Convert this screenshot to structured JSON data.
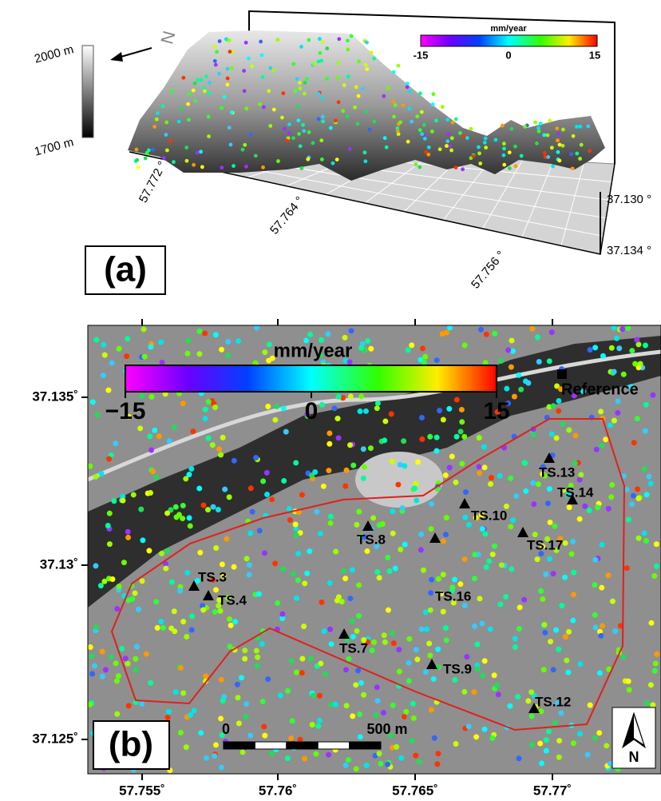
{
  "panel_a": {
    "label": "(a)",
    "elevation_scale": {
      "top": "2000 m",
      "bottom": "1700 m"
    },
    "north": "N",
    "colorbar": {
      "title": "mm/year",
      "ticks": [
        "-15",
        "0",
        "15"
      ]
    },
    "longitude_labels": [
      "57.772 °",
      "57.764 °",
      "57.756 °"
    ],
    "latitude_labels": [
      "37.130 °",
      "37.134 °"
    ]
  },
  "panel_b": {
    "label": "(b)",
    "reference": "Reference",
    "north": "N",
    "colorbar": {
      "title": "mm/year",
      "ticks": [
        "−15",
        "0",
        "15"
      ]
    },
    "latitude_labels": [
      "37.135˚",
      "37.13˚",
      "37.125˚"
    ],
    "longitude_labels": [
      "57.755˚",
      "57.76˚",
      "57.765˚",
      "57.77˚"
    ],
    "scale_bar": {
      "start": "0",
      "end": "500 m"
    },
    "stations": [
      "TS.3",
      "TS.4",
      "TS.7",
      "TS.8",
      "TS.9",
      "TS.10",
      "TS.12",
      "TS.13",
      "TS.14",
      "TS.16",
      "TS.17"
    ]
  }
}
